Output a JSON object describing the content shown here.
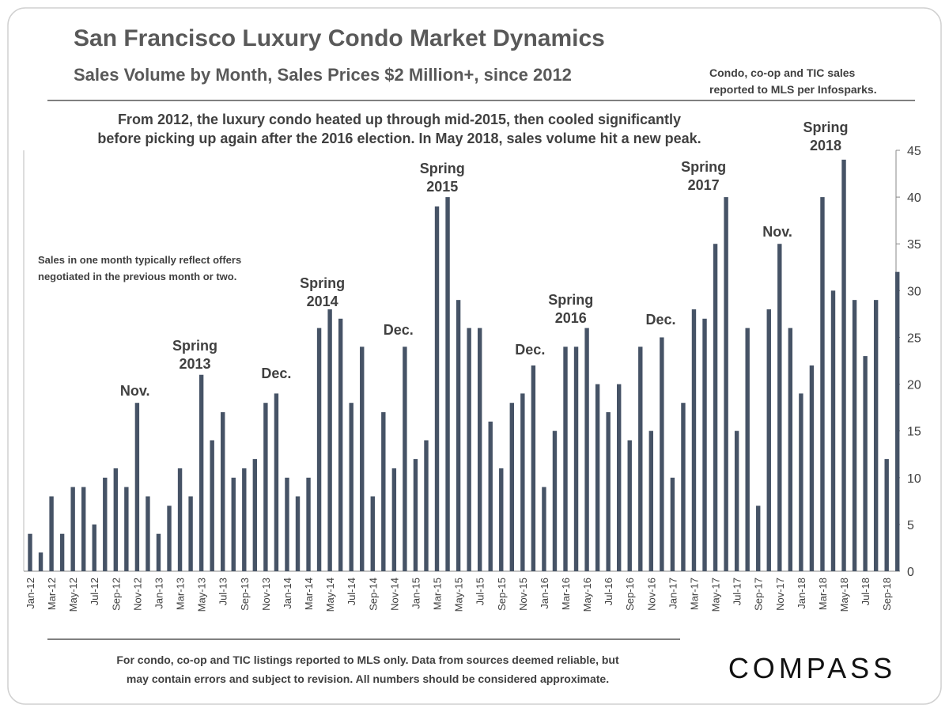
{
  "chart_data": {
    "type": "bar",
    "title": "San Francisco Luxury Condo Market Dynamics",
    "subtitle": "Sales Volume by Month, Sales Prices $2 Million+,  since 2012",
    "note": [
      "Condo, co-op and TIC sales",
      "reported to MLS per Infosparks."
    ],
    "description": [
      "From 2012, the luxury condo heated up through mid-2015, then cooled significantly",
      "before picking up again after the 2016 election. In May 2018, sales volume hit a new peak."
    ],
    "side_note": [
      "Sales in one month typically reflect offers",
      "negotiated in the previous month or two."
    ],
    "footnote": [
      "For condo, co-op and TIC listings reported to MLS only. Data from sources deemed reliable, but",
      "may contain errors and subject to revision. All numbers should be considered approximate."
    ],
    "logo": "COMPASS",
    "annotations": [
      [
        "Nov."
      ],
      [
        "Spring",
        "2013"
      ],
      [
        "Dec."
      ],
      [
        "Spring",
        "2014"
      ],
      [
        "Dec."
      ],
      [
        "Spring",
        "2015"
      ],
      [
        "Dec."
      ],
      [
        "Spring",
        "2016"
      ],
      [
        "Dec."
      ],
      [
        "Spring",
        "2017"
      ],
      [
        "Nov."
      ],
      [
        "Spring",
        "2018"
      ]
    ],
    "categories": [
      "Jan-12",
      null,
      "Mar-12",
      null,
      "May-12",
      null,
      "Jul-12",
      null,
      "Sep-12",
      null,
      "Nov-12",
      null,
      "Jan-13",
      null,
      "Mar-13",
      null,
      "May-13",
      null,
      "Jul-13",
      null,
      "Sep-13",
      null,
      "Nov-13",
      null,
      "Jan-14",
      null,
      "Mar-14",
      null,
      "May-14",
      null,
      "Jul-14",
      null,
      "Sep-14",
      null,
      "Nov-14",
      null,
      "Jan-15",
      null,
      "Mar-15",
      null,
      "May-15",
      null,
      "Jul-15",
      null,
      "Sep-15",
      null,
      "Nov-15",
      null,
      "Jan-16",
      null,
      "Mar-16",
      null,
      "May-16",
      null,
      "Jul-16",
      null,
      "Sep-16",
      null,
      "Nov-16",
      null,
      "Jan-17",
      null,
      "Mar-17",
      null,
      "May-17",
      null,
      "Jul-17",
      null,
      "Sep-17",
      null,
      "Nov-17",
      null,
      "Jan-18",
      null,
      "Mar-18",
      null,
      "May-18",
      null,
      "Jul-18",
      null,
      "Sep-18",
      null
    ],
    "values": [
      4,
      2,
      8,
      4,
      9,
      9,
      5,
      10,
      11,
      9,
      18,
      8,
      4,
      7,
      11,
      8,
      21,
      14,
      17,
      10,
      11,
      12,
      18,
      19,
      10,
      8,
      10,
      26,
      28,
      27,
      18,
      24,
      8,
      17,
      11,
      24,
      12,
      14,
      39,
      40,
      29,
      26,
      26,
      16,
      11,
      18,
      19,
      22,
      9,
      15,
      24,
      24,
      26,
      20,
      17,
      20,
      14,
      24,
      15,
      25,
      10,
      18,
      28,
      27,
      35,
      40,
      15,
      26,
      7,
      28,
      35,
      26,
      19,
      22,
      40,
      30,
      44,
      29,
      23,
      29,
      12,
      32
    ],
    "color": "#465366",
    "ylim": [
      0,
      45
    ],
    "yticks": [
      0,
      5,
      10,
      15,
      20,
      25,
      30,
      35,
      40,
      45
    ],
    "grid": false
  }
}
